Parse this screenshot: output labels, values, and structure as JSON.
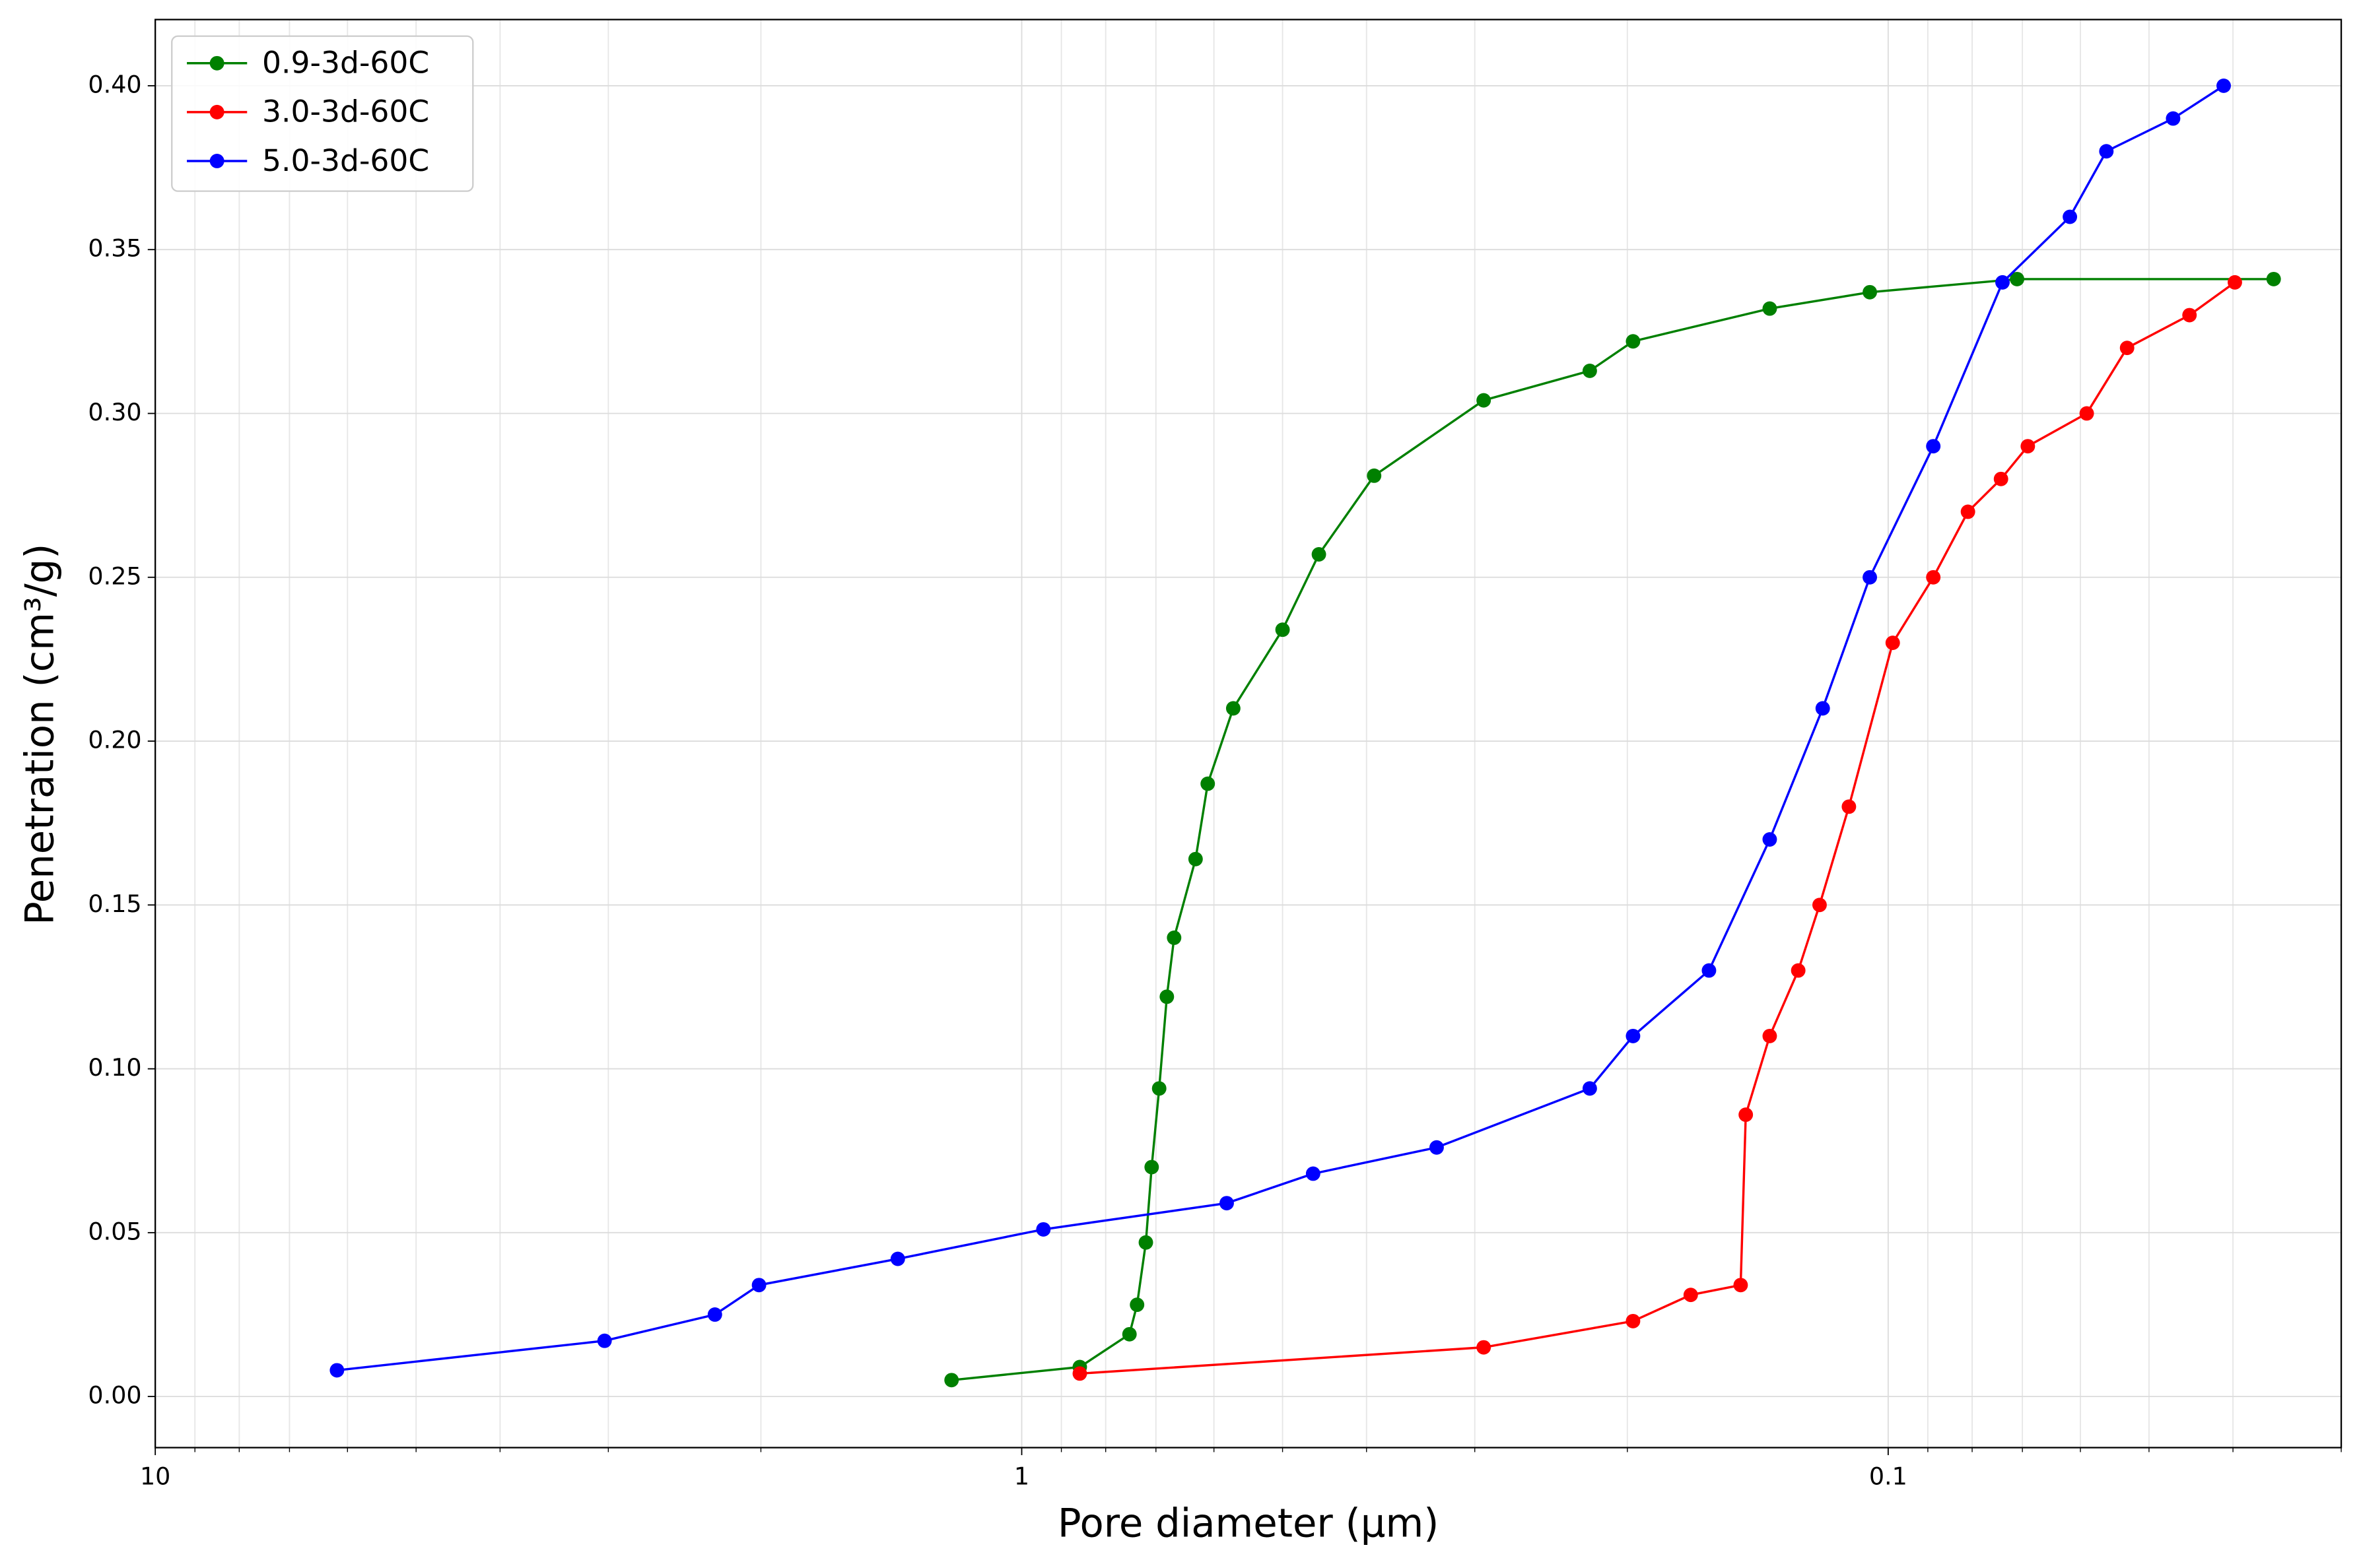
{
  "chart_data": {
    "type": "line",
    "x_label": "Pore diameter (µm)",
    "y_label": "Penetration (cm³/g)",
    "xscale": "log",
    "xlim": [
      10,
      0.03
    ],
    "xticks": [
      10,
      1,
      0.1
    ],
    "xminorticks": [
      9,
      8,
      7,
      6,
      5,
      4,
      3,
      2,
      0.9,
      0.8,
      0.7,
      0.6,
      0.5,
      0.4,
      0.3,
      0.2,
      0.09,
      0.08,
      0.07,
      0.06,
      0.05,
      0.04,
      0.03
    ],
    "ylim": [
      -0.0156,
      0.4202
    ],
    "yticks": [
      {
        "value": 0,
        "label": "0.00"
      },
      {
        "value": 0.05,
        "label": "0.05"
      },
      {
        "value": 0.1,
        "label": "0.10"
      },
      {
        "value": 0.15,
        "label": "0.15"
      },
      {
        "value": 0.2,
        "label": "0.20"
      },
      {
        "value": 0.25,
        "label": "0.25"
      },
      {
        "value": 0.3,
        "label": "0.30"
      },
      {
        "value": 0.35,
        "label": "0.35"
      },
      {
        "value": 0.4,
        "label": "0.40"
      }
    ],
    "grid": true,
    "legend": "upper left",
    "series": [
      {
        "name": "0.9-3d-60C",
        "color": "#008000",
        "x": [
          1.205,
          0.857,
          0.751,
          0.736,
          0.719,
          0.708,
          0.694,
          0.68,
          0.667,
          0.63,
          0.61,
          0.57,
          0.5,
          0.454,
          0.392,
          0.293,
          0.221,
          0.197,
          0.137,
          0.105,
          0.071,
          0.0359
        ],
        "values": [
          0.005,
          0.009,
          0.019,
          0.028,
          0.047,
          0.07,
          0.094,
          0.122,
          0.14,
          0.164,
          0.187,
          0.21,
          0.234,
          0.257,
          0.281,
          0.304,
          0.313,
          0.322,
          0.332,
          0.337,
          0.341,
          0.341
        ]
      },
      {
        "name": "3.0-3d-60C",
        "color": "#ff0000",
        "x": [
          0.857,
          0.293,
          0.197,
          0.169,
          0.148,
          0.146,
          0.137,
          0.127,
          0.12,
          0.111,
          0.0988,
          0.0887,
          0.0809,
          0.0741,
          0.069,
          0.059,
          0.053,
          0.0449,
          0.0398
        ],
        "values": [
          0.007,
          0.015,
          0.023,
          0.031,
          0.034,
          0.086,
          0.11,
          0.13,
          0.15,
          0.18,
          0.23,
          0.25,
          0.27,
          0.28,
          0.29,
          0.3,
          0.32,
          0.33,
          0.34
        ]
      },
      {
        "name": "5.0-3d-60C",
        "color": "#0000ff",
        "x": [
          6.17,
          3.03,
          2.26,
          2.01,
          1.39,
          0.944,
          0.58,
          0.461,
          0.332,
          0.221,
          0.197,
          0.161,
          0.137,
          0.119,
          0.105,
          0.0887,
          0.0738,
          0.0617,
          0.056,
          0.0469,
          0.041
        ],
        "values": [
          0.008,
          0.017,
          0.025,
          0.034,
          0.042,
          0.051,
          0.059,
          0.068,
          0.076,
          0.094,
          0.11,
          0.13,
          0.17,
          0.21,
          0.25,
          0.29,
          0.34,
          0.36,
          0.38,
          0.39,
          0.4
        ]
      }
    ]
  }
}
